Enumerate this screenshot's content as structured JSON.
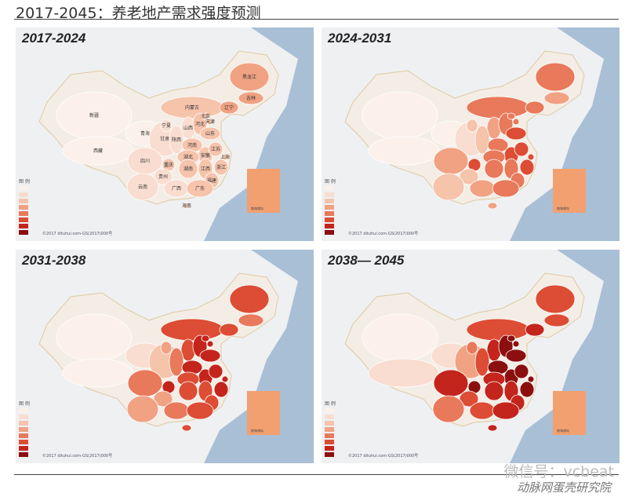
{
  "header": {
    "title": "2017-2045：养老地产需求强度预测"
  },
  "colors": {
    "sea": "#a9bfd6",
    "land": "#f3ede6",
    "border": "#ffffff",
    "levels": [
      "#fbf0ea",
      "#f9ddd0",
      "#f6c3ab",
      "#f0a283",
      "#e8795a",
      "#dd4c34",
      "#c3251c",
      "#8b0f0f"
    ],
    "south_sea_box": "#f2a070"
  },
  "legend_title": "图 例",
  "south_sea_label": "南海诸岛",
  "provinces": [
    "新疆",
    "西藏",
    "青海",
    "甘肃",
    "宁夏",
    "内蒙古",
    "山西",
    "陕西",
    "河北",
    "北京",
    "天津",
    "山东",
    "辽宁",
    "吉林",
    "黑龙江",
    "河南",
    "安徽",
    "江苏",
    "上海",
    "湖北",
    "四川",
    "重庆",
    "贵州",
    "湖南",
    "江西",
    "浙江",
    "福建",
    "云南",
    "广西",
    "广东",
    "海南"
  ],
  "panels": [
    {
      "title": "2017-2024",
      "levels": [
        0,
        0,
        0,
        1,
        1,
        2,
        1,
        1,
        2,
        2,
        2,
        2,
        3,
        3,
        3,
        2,
        2,
        2,
        2,
        2,
        1,
        2,
        1,
        2,
        2,
        2,
        2,
        1,
        1,
        2,
        1
      ]
    },
    {
      "title": "2024-2031",
      "levels": [
        0,
        0,
        0,
        1,
        2,
        4,
        3,
        2,
        4,
        4,
        4,
        5,
        4,
        3,
        4,
        4,
        5,
        5,
        5,
        4,
        3,
        5,
        2,
        4,
        4,
        5,
        4,
        2,
        3,
        4,
        3
      ]
    },
    {
      "title": "2031-2038",
      "levels": [
        0,
        0,
        1,
        2,
        3,
        5,
        5,
        4,
        6,
        6,
        6,
        6,
        5,
        4,
        5,
        6,
        6,
        6,
        6,
        5,
        4,
        6,
        3,
        5,
        5,
        6,
        5,
        3,
        4,
        5,
        5
      ]
    },
    {
      "title": "2038— 2045",
      "levels": [
        0,
        1,
        1,
        3,
        4,
        5,
        6,
        5,
        7,
        7,
        7,
        7,
        6,
        5,
        5,
        7,
        7,
        7,
        7,
        6,
        6,
        7,
        5,
        6,
        6,
        7,
        6,
        4,
        5,
        6,
        6
      ]
    }
  ],
  "copyright": "©2017 dituhui.com-GS(2017)000号",
  "watermark": {
    "line1": "微信号：vcbeat",
    "line2": "动脉网蛋壳研究院"
  }
}
